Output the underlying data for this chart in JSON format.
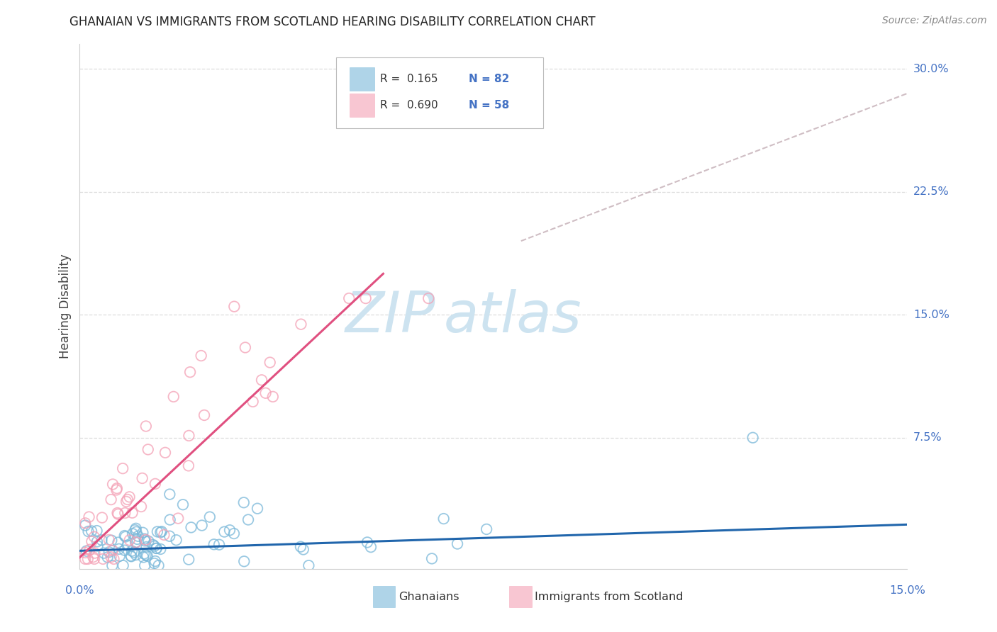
{
  "title": "GHANAIAN VS IMMIGRANTS FROM SCOTLAND HEARING DISABILITY CORRELATION CHART",
  "source": "Source: ZipAtlas.com",
  "ylabel": "Hearing Disability",
  "xlim": [
    0,
    0.15
  ],
  "ylim": [
    -0.005,
    0.315
  ],
  "ghanaian_color": "#7ab8d9",
  "scotland_color": "#f4a0b5",
  "ghanaian_line_color": "#2166ac",
  "scotland_line_color": "#e05080",
  "dashed_line_color": "#c0a8b0",
  "right_label_color": "#4472c4",
  "legend_N_color": "#4472c4",
  "legend_R_color": "#333333",
  "title_color": "#222222",
  "source_color": "#888888",
  "ylabel_color": "#444444",
  "grid_color": "#dddddd",
  "spine_color": "#cccccc",
  "watermark_color": "#cde3f0",
  "ghanaian_R": "0.165",
  "ghanaian_N": "82",
  "scotland_R": "0.690",
  "scotland_N": "58",
  "legend_label1": "Ghanaians",
  "legend_label2": "Immigrants from Scotland",
  "ytick_values": [
    0.075,
    0.15,
    0.225,
    0.3
  ],
  "ytick_labels": [
    "7.5%",
    "15.0%",
    "22.5%",
    "30.0%"
  ],
  "ghanaian_line_x": [
    0.0,
    0.15
  ],
  "ghanaian_line_y": [
    0.006,
    0.022
  ],
  "scotland_line_x": [
    0.0,
    0.055
  ],
  "scotland_line_y": [
    0.002,
    0.175
  ],
  "dashed_line_x": [
    0.08,
    0.15
  ],
  "dashed_line_y": [
    0.195,
    0.285
  ]
}
